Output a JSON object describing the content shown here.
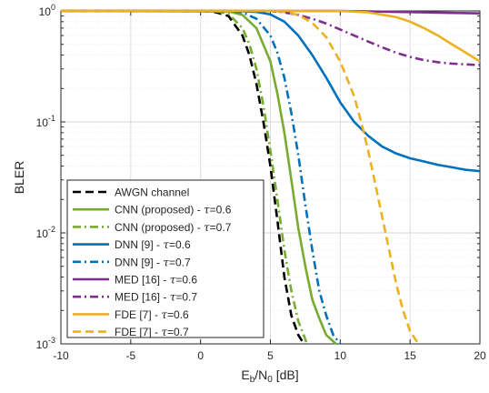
{
  "chart_data": {
    "type": "line",
    "xlabel": {
      "base": "E",
      "sub1": "b",
      "mid": "/N",
      "sub2": "0",
      "tail": " [dB]"
    },
    "ylabel": "BLER",
    "xlim": [
      -10,
      20
    ],
    "ylim": [
      0.001,
      1
    ],
    "yscale": "log",
    "grid": true,
    "legend_position": "bottom-left",
    "x_ticks": [
      -10,
      -5,
      0,
      5,
      10,
      15,
      20
    ],
    "x_tick_labels": [
      "-10",
      "-5",
      "0",
      "5",
      "10",
      "15",
      "20"
    ],
    "y_ticks": [
      {
        "value": 1,
        "base": "10",
        "exp": "0"
      },
      {
        "value": 0.1,
        "base": "10",
        "exp": "-1"
      },
      {
        "value": 0.01,
        "base": "10",
        "exp": "-2"
      },
      {
        "value": 0.001,
        "base": "10",
        "exp": "-3"
      }
    ],
    "series": [
      {
        "name": "AWGN channel",
        "tau": "",
        "color": "#000000",
        "dash": "dashed",
        "x": [
          -10,
          0,
          1,
          2,
          3,
          3.5,
          4,
          4.5,
          5,
          5.5,
          6,
          6.5,
          7,
          7.4
        ],
        "y": [
          1,
          1,
          0.98,
          0.9,
          0.6,
          0.4,
          0.22,
          0.1,
          0.04,
          0.013,
          0.004,
          0.0018,
          0.0012,
          0.001
        ]
      },
      {
        "name": "CNN (proposed) - ",
        "tau": "=0.6",
        "color": "#77ac30",
        "dash": "solid",
        "x": [
          -10,
          2,
          3,
          4,
          5,
          5.5,
          6,
          6.5,
          7,
          7.5,
          8,
          8.5,
          9,
          9.7
        ],
        "y": [
          1,
          0.99,
          0.92,
          0.7,
          0.35,
          0.18,
          0.08,
          0.03,
          0.011,
          0.005,
          0.0025,
          0.0017,
          0.0012,
          0.001
        ]
      },
      {
        "name": "CNN (proposed) - ",
        "tau": "=0.7",
        "color": "#77ac30",
        "dash": "dashdot",
        "x": [
          -10,
          1,
          2,
          3,
          3.5,
          4,
          4.5,
          5,
          5.5,
          6,
          6.5,
          7,
          7.5,
          7.6
        ],
        "y": [
          1,
          1,
          0.94,
          0.7,
          0.5,
          0.3,
          0.14,
          0.055,
          0.02,
          0.007,
          0.003,
          0.0016,
          0.0011,
          0.001
        ]
      },
      {
        "name": "DNN [9] - ",
        "tau": "=0.6",
        "color": "#0072bd",
        "dash": "solid",
        "x": [
          -10,
          2,
          4,
          5,
          6,
          7,
          8,
          9,
          10,
          11,
          12,
          13,
          14,
          15,
          16,
          17,
          18,
          19,
          20
        ],
        "y": [
          1,
          1,
          0.98,
          0.93,
          0.8,
          0.6,
          0.4,
          0.25,
          0.15,
          0.1,
          0.075,
          0.06,
          0.052,
          0.047,
          0.044,
          0.041,
          0.039,
          0.037,
          0.036
        ]
      },
      {
        "name": "DNN [9] - ",
        "tau": "=0.7",
        "color": "#0072bd",
        "dash": "dashdot",
        "x": [
          -10,
          2,
          3,
          4,
          5,
          5.5,
          6,
          6.5,
          7,
          7.5,
          8,
          8.5,
          9,
          9.5,
          10
        ],
        "y": [
          1,
          1,
          0.97,
          0.85,
          0.6,
          0.42,
          0.25,
          0.12,
          0.05,
          0.018,
          0.007,
          0.003,
          0.0018,
          0.0012,
          0.001
        ]
      },
      {
        "name": "MED [16] - ",
        "tau": "=0.6",
        "color": "#7e2f8e",
        "dash": "solid",
        "x": [
          -10,
          10,
          12,
          14,
          16,
          18,
          20
        ],
        "y": [
          1,
          1,
          0.99,
          0.98,
          0.97,
          0.96,
          0.95
        ]
      },
      {
        "name": "MED [16] - ",
        "tau": "=0.7",
        "color": "#7e2f8e",
        "dash": "dashdot",
        "x": [
          -10,
          5,
          6,
          7,
          8,
          9,
          10,
          11,
          12,
          13,
          14,
          15,
          16,
          17,
          18,
          19,
          20
        ],
        "y": [
          1,
          1,
          0.97,
          0.92,
          0.85,
          0.77,
          0.68,
          0.6,
          0.53,
          0.47,
          0.42,
          0.385,
          0.36,
          0.345,
          0.335,
          0.33,
          0.325
        ]
      },
      {
        "name": "FDE [7] - ",
        "tau": "=0.6",
        "color": "#edb120",
        "dash": "solid",
        "x": [
          -10,
          10,
          12,
          14,
          15,
          16,
          17,
          18,
          19,
          20
        ],
        "y": [
          1,
          1,
          0.97,
          0.88,
          0.8,
          0.7,
          0.6,
          0.5,
          0.42,
          0.35
        ]
      },
      {
        "name": "FDE [7] - ",
        "tau": "=0.7",
        "color": "#edb120",
        "dash": "dashed",
        "x": [
          -10,
          5,
          6,
          7,
          8,
          9,
          10,
          11,
          11.5,
          12,
          12.5,
          13,
          13.5,
          14,
          14.5,
          15,
          15.6
        ],
        "y": [
          1,
          1,
          0.98,
          0.92,
          0.78,
          0.58,
          0.35,
          0.17,
          0.1,
          0.055,
          0.028,
          0.014,
          0.007,
          0.0035,
          0.002,
          0.0013,
          0.001
        ]
      }
    ]
  }
}
